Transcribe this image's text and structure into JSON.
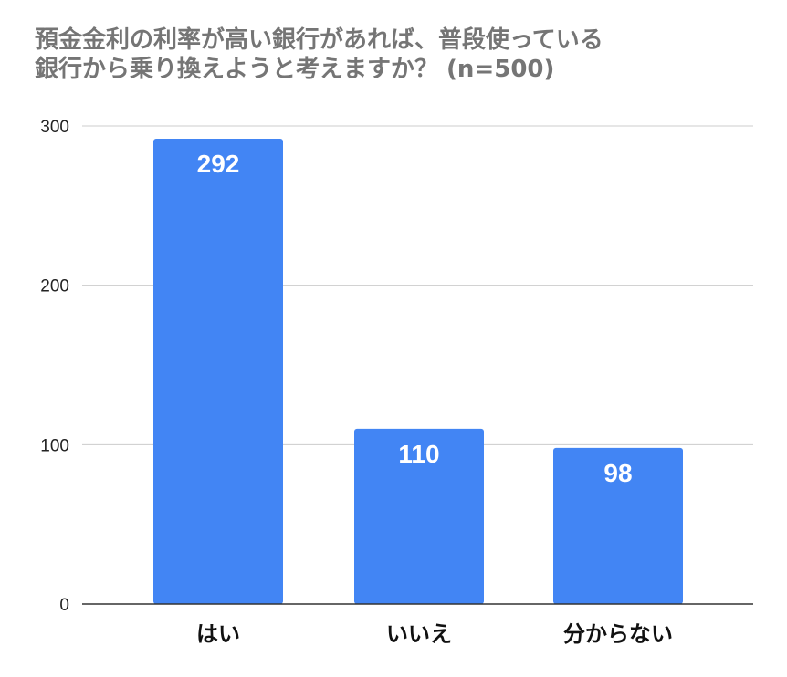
{
  "chart_data": {
    "type": "bar",
    "title_lines": [
      "預金金利の利率が高い銀行があれば、普段使っている",
      "銀行から乗り換えようと考えますか？ (n=500)"
    ],
    "categories": [
      "はい",
      "いいえ",
      "分からない"
    ],
    "values": [
      292,
      110,
      98
    ],
    "data_labels": [
      "292",
      "110",
      "98"
    ],
    "xlabel": "",
    "ylabel": "",
    "ylim": [
      0,
      300
    ],
    "yticks": [
      0,
      100,
      200,
      300
    ],
    "ytick_labels": [
      "0",
      "100",
      "200",
      "300"
    ],
    "grid": true,
    "legend": "none",
    "colors": {
      "bar": "#4285f4",
      "gridline": "#cccccc",
      "axis": "#333333",
      "title": "#757575"
    }
  }
}
